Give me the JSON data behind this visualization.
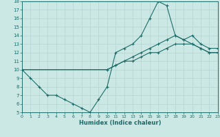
{
  "xlabel": "Humidex (Indice chaleur)",
  "xlim": [
    0,
    23
  ],
  "ylim": [
    5,
    18
  ],
  "xticks": [
    0,
    1,
    2,
    3,
    4,
    5,
    6,
    7,
    8,
    9,
    10,
    11,
    12,
    13,
    14,
    15,
    16,
    17,
    18,
    19,
    20,
    21,
    22,
    23
  ],
  "yticks": [
    5,
    6,
    7,
    8,
    9,
    10,
    11,
    12,
    13,
    14,
    15,
    16,
    17,
    18
  ],
  "bg_color": "#cce8e5",
  "line_color": "#1a6b68",
  "grid_color": "#b8d8d5",
  "line1_x": [
    0,
    1,
    2,
    3,
    4,
    5,
    6,
    7,
    8,
    9,
    10,
    11,
    12,
    13,
    14,
    15,
    16,
    17,
    18,
    19,
    20,
    21,
    22,
    23
  ],
  "line1_y": [
    10,
    9,
    8,
    7,
    7,
    6.5,
    6,
    5.5,
    5,
    6.5,
    8,
    12,
    12.5,
    13,
    14,
    16,
    18,
    17.5,
    14,
    13.5,
    13,
    12.5,
    12,
    12
  ],
  "line2_x": [
    0,
    10,
    11,
    12,
    13,
    14,
    15,
    16,
    17,
    18,
    19,
    20,
    21,
    22,
    23
  ],
  "line2_y": [
    10,
    10,
    10.5,
    11,
    11.5,
    12,
    12.5,
    13,
    13.5,
    14,
    13.5,
    14,
    13,
    12.5,
    12.5
  ],
  "line3_x": [
    0,
    10,
    11,
    12,
    13,
    14,
    15,
    16,
    17,
    18,
    19,
    20,
    21,
    22,
    23
  ],
  "line3_y": [
    10,
    10,
    10.5,
    11,
    11,
    11.5,
    12,
    12,
    12.5,
    13,
    13,
    13,
    12.5,
    12,
    12
  ]
}
